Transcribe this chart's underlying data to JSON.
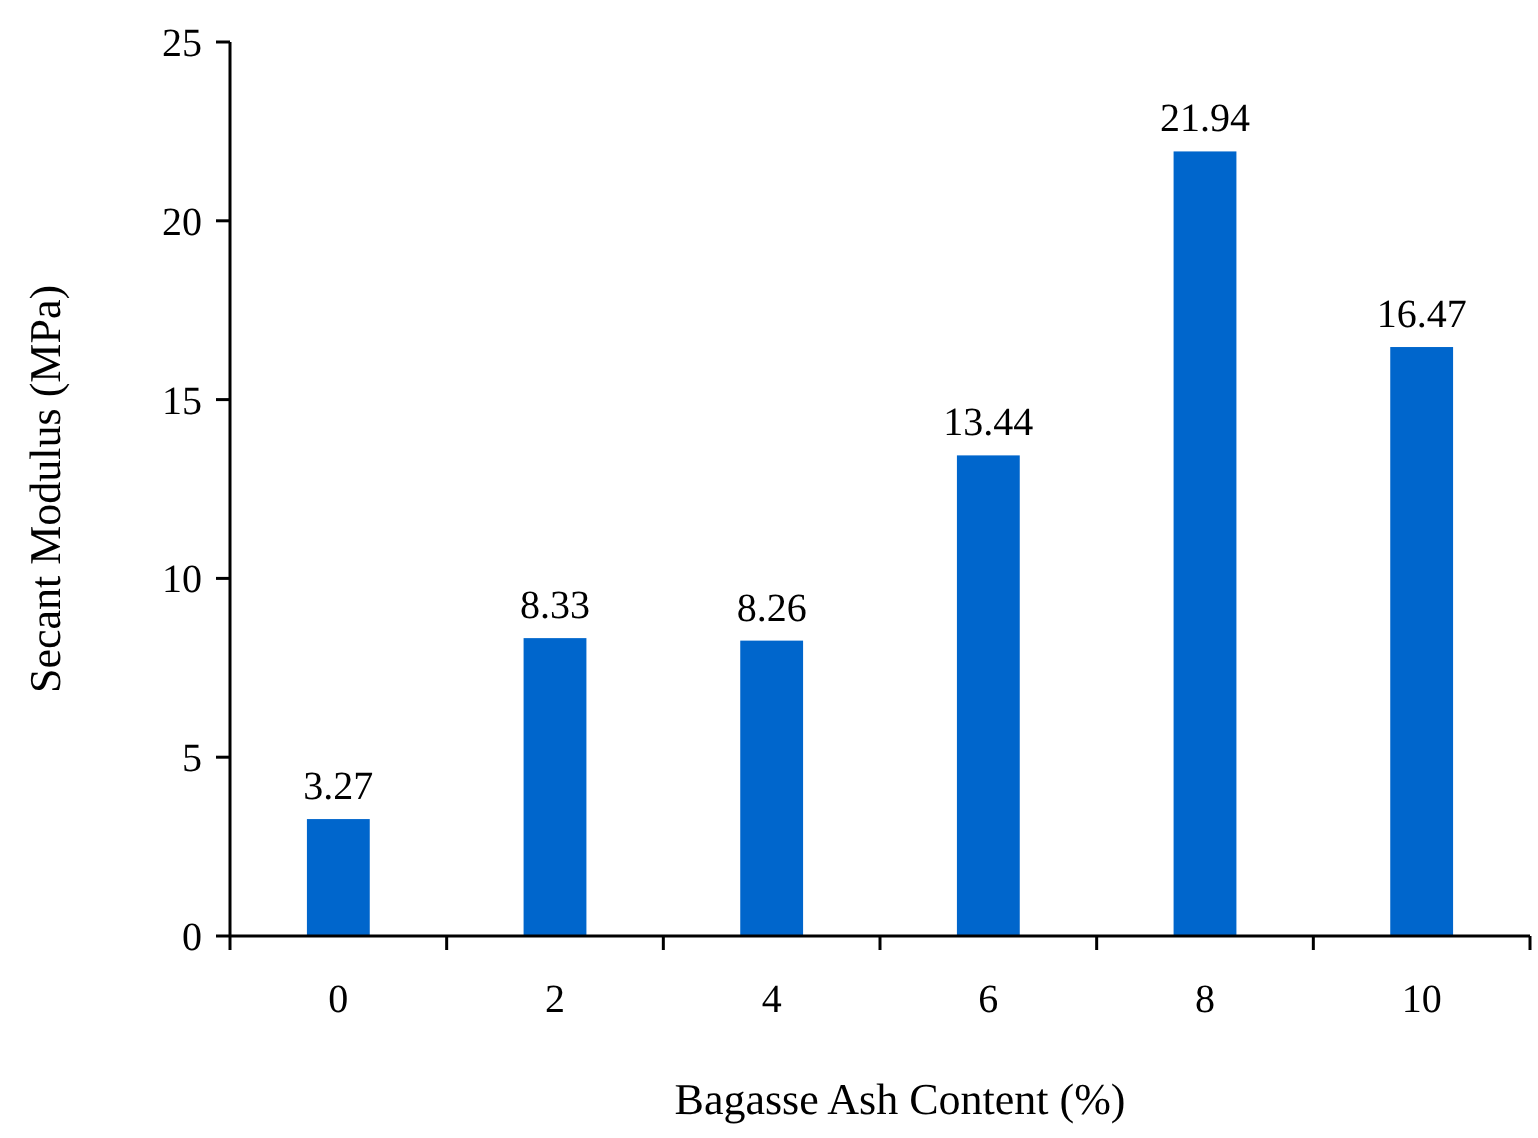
{
  "chart_data": {
    "type": "bar",
    "xlabel": "Bagasse Ash Content (%)",
    "ylabel": "Secant Modulus (MPa)",
    "categories": [
      "0",
      "2",
      "4",
      "6",
      "8",
      "10"
    ],
    "values": [
      3.27,
      8.33,
      8.26,
      13.44,
      21.94,
      16.47
    ],
    "color": "#0066cc",
    "ylim": [
      0,
      25
    ],
    "yticks": [
      0,
      5,
      10,
      15,
      20,
      25
    ],
    "data_labels": true,
    "grid": false
  }
}
